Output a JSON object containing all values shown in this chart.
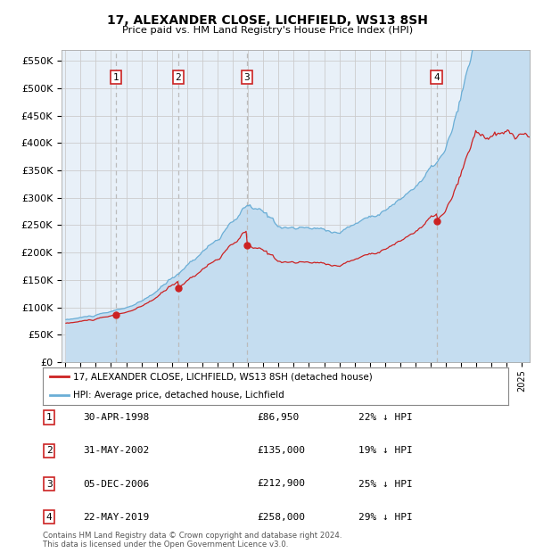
{
  "title": "17, ALEXANDER CLOSE, LICHFIELD, WS13 8SH",
  "subtitle": "Price paid vs. HM Land Registry's House Price Index (HPI)",
  "ylim": [
    0,
    570000
  ],
  "yticks": [
    0,
    50000,
    100000,
    150000,
    200000,
    250000,
    300000,
    350000,
    400000,
    450000,
    500000,
    550000
  ],
  "xlim_start": 1994.75,
  "xlim_end": 2025.5,
  "sales": [
    {
      "t": 1998.33,
      "price": 86950,
      "label": "1"
    },
    {
      "t": 2002.42,
      "price": 135000,
      "label": "2"
    },
    {
      "t": 2006.92,
      "price": 212900,
      "label": "3"
    },
    {
      "t": 2019.38,
      "price": 258000,
      "label": "4"
    }
  ],
  "sale_info": [
    {
      "num": "1",
      "date": "30-APR-1998",
      "price": "£86,950",
      "note": "22% ↓ HPI"
    },
    {
      "num": "2",
      "date": "31-MAY-2002",
      "price": "£135,000",
      "note": "19% ↓ HPI"
    },
    {
      "num": "3",
      "date": "05-DEC-2006",
      "price": "£212,900",
      "note": "25% ↓ HPI"
    },
    {
      "num": "4",
      "date": "22-MAY-2019",
      "price": "£258,000",
      "note": "29% ↓ HPI"
    }
  ],
  "hpi_fill_color": "#c5ddf0",
  "hpi_line_color": "#6aaed6",
  "sale_line_color": "#cc2222",
  "dashed_line_color": "#bbbbbb",
  "grid_color": "#cccccc",
  "bg_color": "#e8f0f8",
  "label_bg": "#ffffff",
  "label_border": "#cc2222",
  "footer": "Contains HM Land Registry data © Crown copyright and database right 2024.\nThis data is licensed under the Open Government Licence v3.0.",
  "legend_line1": "17, ALEXANDER CLOSE, LICHFIELD, WS13 8SH (detached house)",
  "legend_line2": "HPI: Average price, detached house, Lichfield"
}
